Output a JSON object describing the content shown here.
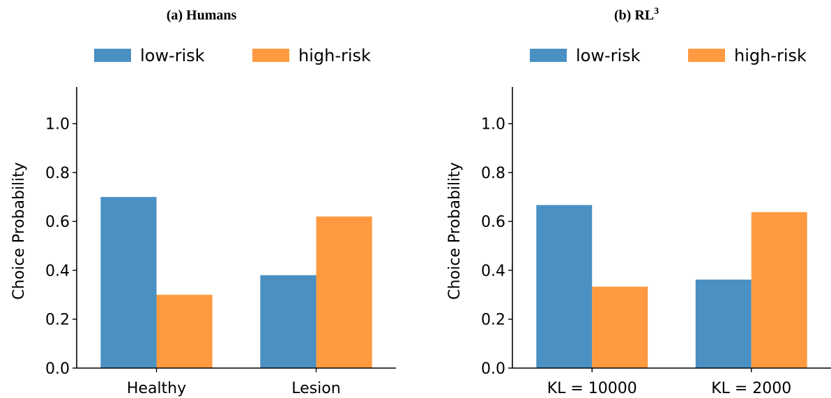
{
  "chart_data": [
    {
      "type": "bar",
      "title": "(a) Humans",
      "ylabel": "Choice Probability",
      "xlabel": "",
      "categories": [
        "Healthy",
        "Lesion"
      ],
      "series": [
        {
          "name": "low-risk",
          "values": [
            0.7,
            0.38
          ]
        },
        {
          "name": "high-risk",
          "values": [
            0.3,
            0.62
          ]
        }
      ],
      "ylim": [
        0,
        1.15
      ],
      "yticks": [
        0.0,
        0.2,
        0.4,
        0.6,
        0.8,
        1.0
      ],
      "ytick_labels": [
        "0.0",
        "0.2",
        "0.4",
        "0.6",
        "0.8",
        "1.0"
      ],
      "legend": "top-center",
      "grid": false
    },
    {
      "type": "bar",
      "title": "(b) RL",
      "title_superscript": "3",
      "ylabel": "Choice Probability",
      "xlabel": "",
      "categories": [
        "KL = 10000",
        "KL = 2000"
      ],
      "series": [
        {
          "name": "low-risk",
          "values": [
            0.667,
            0.362
          ]
        },
        {
          "name": "high-risk",
          "values": [
            0.333,
            0.638
          ]
        }
      ],
      "ylim": [
        0,
        1.15
      ],
      "yticks": [
        0.0,
        0.2,
        0.4,
        0.6,
        0.8,
        1.0
      ],
      "ytick_labels": [
        "0.0",
        "0.2",
        "0.4",
        "0.6",
        "0.8",
        "1.0"
      ],
      "legend": "top-center",
      "grid": false
    }
  ],
  "colors": {
    "low-risk": "#4a90c2",
    "high-risk": "#ff9a40"
  }
}
